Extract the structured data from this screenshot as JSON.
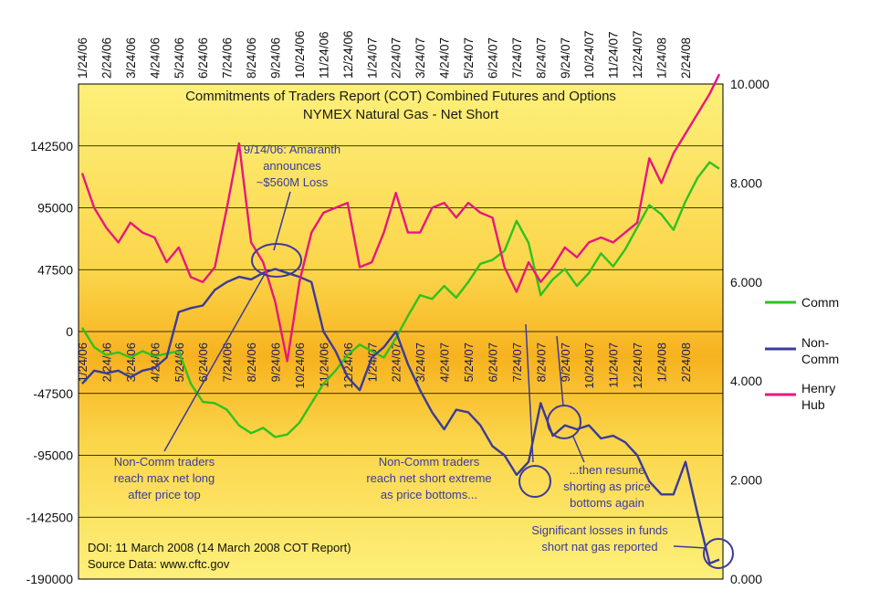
{
  "chart_data": {
    "type": "line",
    "title": "Commitments of Traders Report (COT) Combined Futures and Options",
    "subtitle": "NYMEX Natural Gas - Net Short",
    "x_tick_labels": [
      "1/24/06",
      "2/24/06",
      "3/24/06",
      "4/24/06",
      "5/24/06",
      "6/24/06",
      "7/24/06",
      "8/24/06",
      "9/24/06",
      "10/24/06",
      "11/24/06",
      "12/24/06",
      "1/24/07",
      "2/24/07",
      "3/24/07",
      "4/24/07",
      "5/24/07",
      "6/24/07",
      "7/24/07",
      "8/24/07",
      "9/24/07",
      "10/24/07",
      "11/24/07",
      "12/24/07",
      "1/24/08",
      "2/24/08"
    ],
    "inner_x_tick_labels": [
      "1/24/06",
      "2/24/06",
      "3/24/06",
      "4/24/06",
      "5/24/06",
      "6/24/06",
      "7/24/06",
      "8/24/06",
      "9/24/06",
      "10/24/06",
      "11/24/06",
      "12/24/06",
      "1/24/07",
      "2/24/07",
      "3/24/07",
      "4/24/07",
      "5/24/07",
      "6/24/07",
      "7/24/07",
      "8/24/07",
      "9/24/07",
      "10/24/07",
      "11/24/07",
      "12/24/07",
      "1/24/08",
      "2/24/08"
    ],
    "y_left": {
      "ticks": [
        "142500",
        "95000",
        "47500",
        "0",
        "-47500",
        "-95000",
        "-142500",
        "-190000"
      ],
      "values": [
        142500,
        95000,
        47500,
        0,
        -47500,
        -95000,
        -142500,
        -190000
      ],
      "ylim": [
        -190000,
        190000
      ]
    },
    "y_right": {
      "ticks": [
        "10.000",
        "8.000",
        "6.000",
        "4.000",
        "2.000",
        "0.000"
      ],
      "values": [
        10,
        8,
        6,
        4,
        2,
        0
      ],
      "ylim": [
        0,
        10
      ]
    },
    "series": [
      {
        "name": "Comm",
        "axis": "left",
        "color": "#2ec21f",
        "x": [
          0,
          0.5,
          1,
          1.5,
          2,
          2.5,
          3,
          3.5,
          4,
          4.5,
          5,
          5.5,
          6,
          6.5,
          7,
          7.5,
          8,
          8.5,
          9,
          9.5,
          10,
          10.5,
          11,
          11.5,
          12,
          12.5,
          13,
          13.5,
          14,
          14.5,
          15,
          15.5,
          16,
          16.5,
          17,
          17.5,
          18,
          18.5,
          19,
          19.5,
          20,
          20.5,
          21,
          21.5,
          22,
          22.5,
          23,
          23.5,
          24,
          24.5,
          25,
          25.5,
          26,
          26.4
        ],
        "values": [
          3000,
          -12000,
          -18000,
          -16000,
          -20000,
          -15000,
          -19000,
          -17000,
          -15000,
          -40000,
          -54000,
          -55000,
          -60000,
          -72000,
          -78000,
          -74000,
          -81000,
          -79000,
          -70000,
          -55000,
          -40000,
          -30000,
          -18000,
          -10000,
          -15000,
          -20000,
          -5000,
          12000,
          28000,
          25000,
          35000,
          26000,
          38000,
          52000,
          55000,
          62000,
          85000,
          68000,
          28000,
          40000,
          48000,
          35000,
          45000,
          60000,
          50000,
          63000,
          80000,
          97000,
          90000,
          78000,
          100000,
          118000,
          130000,
          125000
        ]
      },
      {
        "name": "Non-Comm",
        "axis": "left",
        "color": "#3b3b9a",
        "x": [
          0,
          0.5,
          1,
          1.5,
          2,
          2.5,
          3,
          3.5,
          4,
          4.5,
          5,
          5.5,
          6,
          6.5,
          7,
          7.5,
          8,
          8.5,
          9,
          9.5,
          10,
          10.5,
          11,
          11.5,
          12,
          12.5,
          13,
          13.5,
          14,
          14.5,
          15,
          15.5,
          16,
          16.5,
          17,
          17.5,
          18,
          18.5,
          19,
          19.5,
          20,
          20.5,
          21,
          21.5,
          22,
          22.5,
          23,
          23.5,
          24,
          24.5,
          25,
          25.5,
          26,
          26.4
        ],
        "values": [
          -40000,
          -30000,
          -32000,
          -30000,
          -35000,
          -30000,
          -28000,
          -20000,
          15000,
          18000,
          20000,
          32000,
          38000,
          42000,
          40000,
          45000,
          48000,
          45000,
          42000,
          38000,
          0,
          -15000,
          -35000,
          -45000,
          -20000,
          -12000,
          0,
          -25000,
          -45000,
          -62000,
          -75000,
          -60000,
          -62000,
          -72000,
          -88000,
          -95000,
          -110000,
          -100000,
          -55000,
          -80000,
          -72000,
          -75000,
          -72000,
          -82000,
          -80000,
          -85000,
          -95000,
          -115000,
          -125000,
          -125000,
          -100000,
          -140000,
          -178000,
          -175000
        ]
      },
      {
        "name": "Henry Hub",
        "axis": "right",
        "color": "#e8177f",
        "x": [
          0,
          0.5,
          1,
          1.5,
          2,
          2.5,
          3,
          3.5,
          4,
          4.5,
          5,
          5.5,
          6,
          6.5,
          7,
          7.5,
          8,
          8.5,
          9,
          9.5,
          10,
          10.5,
          11,
          11.5,
          12,
          12.5,
          13,
          13.5,
          14,
          14.5,
          15,
          15.5,
          16,
          16.5,
          17,
          17.5,
          18,
          18.5,
          19,
          19.5,
          20,
          20.5,
          21,
          21.5,
          22,
          22.5,
          23,
          23.5,
          24,
          24.5,
          25,
          25.5,
          26,
          26.4
        ],
        "values": [
          8.2,
          7.5,
          7.1,
          6.8,
          7.2,
          7.0,
          6.9,
          6.4,
          6.7,
          6.1,
          6.0,
          6.3,
          7.5,
          8.8,
          6.8,
          6.4,
          5.6,
          4.4,
          6.0,
          7.0,
          7.4,
          7.5,
          7.6,
          6.3,
          6.4,
          7.0,
          7.8,
          7.0,
          7.0,
          7.5,
          7.6,
          7.3,
          7.6,
          7.4,
          7.3,
          6.3,
          5.8,
          6.4,
          6.0,
          6.3,
          6.7,
          6.5,
          6.8,
          6.9,
          6.8,
          7.0,
          7.2,
          8.5,
          8.0,
          8.6,
          9.0,
          9.4,
          9.8,
          10.2
        ]
      }
    ],
    "legend": [
      "Comm",
      "Non-Comm",
      "Henry Hub"
    ],
    "legend_placement": "right",
    "grid": "horizontal"
  },
  "annotations": {
    "amaranth_l1": "9/14/06: Amaranth",
    "amaranth_l2": "announces",
    "amaranth_l3": "~$560M Loss",
    "maxlong_l1": "Non-Comm traders",
    "maxlong_l2": "reach max net long",
    "maxlong_l3": "after price top",
    "netshort_l1": "Non-Comm traders",
    "netshort_l2": "reach net short extreme",
    "netshort_l3": "as price bottoms...",
    "resume_l1": "...then resume",
    "resume_l2": "shorting as price",
    "resume_l3": "bottoms again",
    "losses_l1": "Significant losses in funds",
    "losses_l2": "short nat gas reported"
  },
  "legend_text": {
    "comm": "Comm",
    "noncomm_l1": "Non-",
    "noncomm_l2": "Comm",
    "hh_l1": "Henry",
    "hh_l2": "Hub"
  },
  "source": {
    "doi": "DOI: 11 March 2008 (14 March 2008 COT Report)",
    "data": "Source Data: www.cftc.gov"
  }
}
